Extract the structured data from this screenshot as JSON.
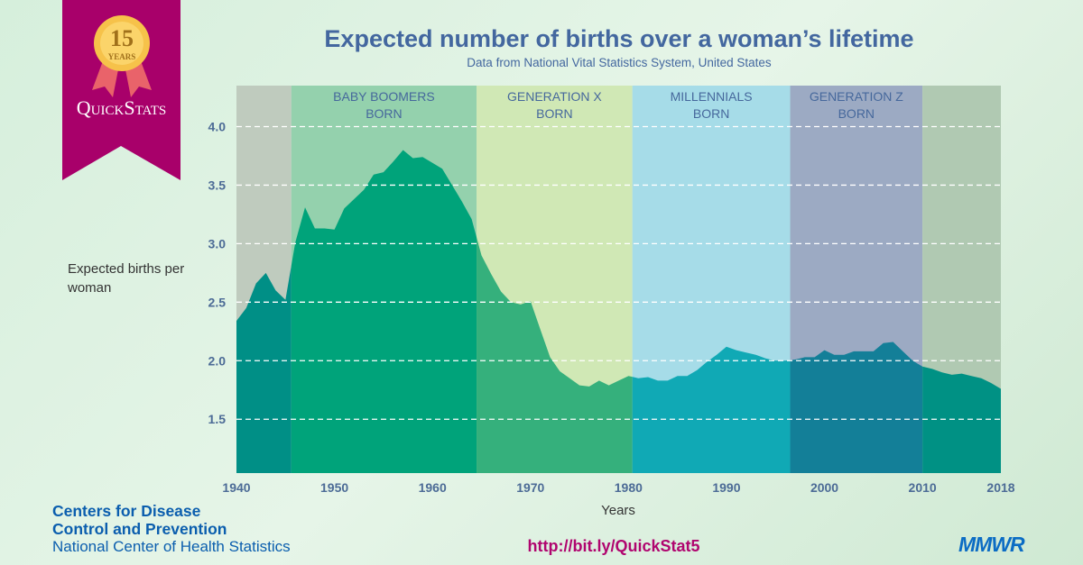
{
  "header": {
    "title": "Expected number of births over a woman’s lifetime",
    "subtitle": "Data from National Vital Statistics System, United States"
  },
  "logo": {
    "badge_number": "15",
    "badge_label": "YEARS",
    "name": "QuickStats",
    "banner_color": "#a8006a",
    "medal_color": "#f6c24a",
    "ribbon_color": "#e9636a"
  },
  "footer": {
    "org_line1": "Centers for Disease",
    "org_line2": "Control and Prevention",
    "org_line3": "National Center of Health Statistics",
    "url": "http://bit.ly/QuickStat5",
    "publication": "MMWR"
  },
  "chart_data": {
    "type": "area",
    "title": "Expected number of births over a woman’s lifetime",
    "subtitle": "Data from National Vital Statistics System, United States",
    "xlabel": "Years",
    "ylabel": "Expected births per woman",
    "xlim": [
      1940,
      2018
    ],
    "ylim": [
      1.04,
      4.35
    ],
    "grid": "horizontal dashed",
    "x_ticks": [
      "1940",
      "1950",
      "1960",
      "1970",
      "1980",
      "1990",
      "2000",
      "2010",
      "2018"
    ],
    "y_ticks": [
      "4.0",
      "3.5",
      "3.0",
      "2.5",
      "2.0",
      "1.5"
    ],
    "x": [
      1940,
      1941,
      1942,
      1943,
      1944,
      1945,
      1946,
      1947,
      1948,
      1949,
      1950,
      1951,
      1952,
      1953,
      1954,
      1955,
      1956,
      1957,
      1958,
      1959,
      1960,
      1961,
      1962,
      1963,
      1964,
      1965,
      1966,
      1967,
      1968,
      1969,
      1970,
      1971,
      1972,
      1973,
      1974,
      1975,
      1976,
      1977,
      1978,
      1979,
      1980,
      1981,
      1982,
      1983,
      1984,
      1985,
      1986,
      1987,
      1988,
      1989,
      1990,
      1991,
      1992,
      1993,
      1994,
      1995,
      1996,
      1997,
      1998,
      1999,
      2000,
      2001,
      2002,
      2003,
      2004,
      2005,
      2006,
      2007,
      2008,
      2009,
      2010,
      2011,
      2012,
      2013,
      2014,
      2015,
      2016,
      2017,
      2018
    ],
    "values": [
      2.34,
      2.45,
      2.66,
      2.75,
      2.6,
      2.52,
      3.01,
      3.31,
      3.13,
      3.13,
      3.12,
      3.3,
      3.38,
      3.46,
      3.59,
      3.61,
      3.7,
      3.8,
      3.73,
      3.74,
      3.69,
      3.64,
      3.5,
      3.36,
      3.21,
      2.9,
      2.74,
      2.59,
      2.5,
      2.48,
      2.51,
      2.27,
      2.03,
      1.91,
      1.85,
      1.79,
      1.78,
      1.83,
      1.79,
      1.83,
      1.87,
      1.85,
      1.86,
      1.83,
      1.83,
      1.87,
      1.87,
      1.92,
      1.99,
      2.05,
      2.12,
      2.09,
      2.07,
      2.05,
      2.02,
      2.0,
      2.0,
      2.01,
      2.03,
      2.03,
      2.09,
      2.05,
      2.05,
      2.08,
      2.08,
      2.08,
      2.15,
      2.16,
      2.08,
      2.0,
      1.95,
      1.93,
      1.9,
      1.88,
      1.89,
      1.87,
      1.85,
      1.81,
      1.76
    ],
    "bands": [
      {
        "start": 1940,
        "end": 1945.6,
        "label1": "",
        "label2": "",
        "bg": "#bfcbbe",
        "fill": "#008f86"
      },
      {
        "start": 1945.6,
        "end": 1964.5,
        "label1": "BABY BOOMERS",
        "label2": "BORN",
        "bg": "#94d1ad",
        "fill": "#00a37a"
      },
      {
        "start": 1964.5,
        "end": 1980.4,
        "label1": "GENERATION X",
        "label2": "BORN",
        "bg": "#d0e8b5",
        "fill": "#35b07c"
      },
      {
        "start": 1980.4,
        "end": 1996.5,
        "label1": "MILLENNIALS",
        "label2": "BORN",
        "bg": "#a6dce8",
        "fill": "#10a9b5"
      },
      {
        "start": 1996.5,
        "end": 2010,
        "label1": "GENERATION Z",
        "label2": "BORN",
        "bg": "#9caac3",
        "fill": "#137f98"
      },
      {
        "start": 2010,
        "end": 2018,
        "label1": "",
        "label2": "",
        "bg": "#b0c9b2",
        "fill": "#009184"
      }
    ],
    "colors": {
      "tick_text": "#4c6b96",
      "band_label": "#46689c",
      "grid": "#ffffff"
    }
  }
}
